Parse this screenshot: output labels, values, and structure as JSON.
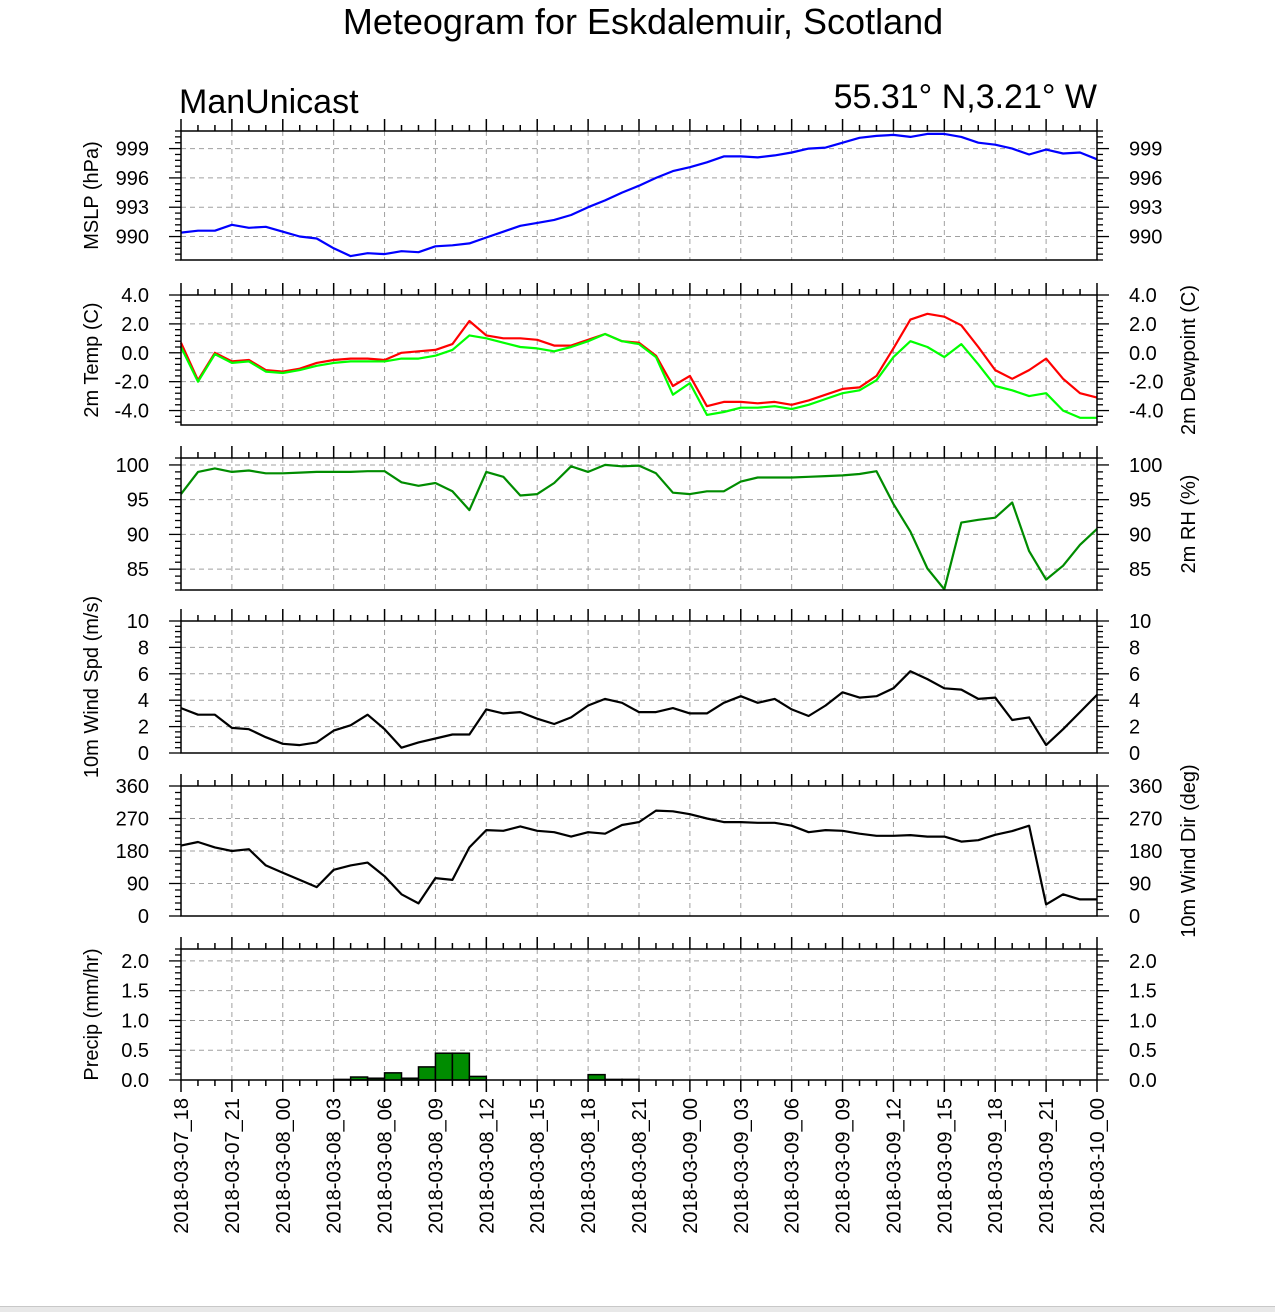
{
  "title": "Meteogram for Eskdalemuir, Scotland",
  "model": "ManUnicast",
  "location": "55.31° N,3.21° W",
  "colors": {
    "mslp": "#0000ff",
    "temp": "#ff0000",
    "dewpoint": "#00ff00",
    "rh": "#008c00",
    "wind": "#000000",
    "precip": "#008c00",
    "grid": "#a0a0a0"
  },
  "chart_data": {
    "type": "line",
    "x_labels": [
      "2018-03-07_18",
      "2018-03-07_21",
      "2018-03-08_00",
      "2018-03-08_03",
      "2018-03-08_06",
      "2018-03-08_09",
      "2018-03-08_12",
      "2018-03-08_15",
      "2018-03-08_18",
      "2018-03-08_21",
      "2018-03-09_00",
      "2018-03-09_03",
      "2018-03-09_06",
      "2018-03-09_09",
      "2018-03-09_12",
      "2018-03-09_15",
      "2018-03-09_18",
      "2018-03-09_21",
      "2018-03-10_00"
    ],
    "x_hours": [
      0,
      1,
      2,
      3,
      4,
      5,
      6,
      7,
      8,
      9,
      10,
      11,
      12,
      13,
      14,
      15,
      16,
      17,
      18,
      19,
      20,
      21,
      22,
      23,
      24,
      25,
      26,
      27,
      28,
      29,
      30,
      31,
      32,
      33,
      34,
      35,
      36,
      37,
      38,
      39,
      40,
      41,
      42,
      43,
      44,
      45,
      46,
      47,
      48,
      49,
      50,
      51,
      52,
      53,
      54
    ],
    "panels": [
      {
        "ylabel": "MSLP (hPa)",
        "ylabel_right": "",
        "ylim": [
          987.6,
          1000.8
        ],
        "ticks": [
          990,
          993,
          996,
          999
        ],
        "tick_labels": [
          "990",
          "993",
          "996",
          "999"
        ],
        "series": [
          {
            "color_key": "mslp",
            "values": [
              990.4,
              990.6,
              990.6,
              991.2,
              990.9,
              991.0,
              990.5,
              990.0,
              989.8,
              988.8,
              988.0,
              988.3,
              988.2,
              988.5,
              988.4,
              989.0,
              989.1,
              989.3,
              989.9,
              990.5,
              991.1,
              991.4,
              991.7,
              992.2,
              993.0,
              993.7,
              994.5,
              995.2,
              996.0,
              996.7,
              997.1,
              997.6,
              998.2,
              998.2,
              998.1,
              998.3,
              998.6,
              999.0,
              999.1,
              999.6,
              1000.1,
              1000.3,
              1000.4,
              1000.2,
              1000.5,
              1000.5,
              1000.2,
              999.6,
              999.4,
              999.0,
              998.4,
              998.9,
              998.5,
              998.6,
              997.9
            ]
          }
        ]
      },
      {
        "ylabel": "2m Temp (C)",
        "ylabel_right": "2m Dewpoint (C)",
        "ylim": [
          -5.0,
          4.0
        ],
        "ticks": [
          -4,
          -2,
          0,
          2,
          4
        ],
        "tick_labels": [
          "-4.0",
          "-2.0",
          "0.0",
          "2.0",
          "4.0"
        ],
        "series": [
          {
            "color_key": "temp",
            "values": [
              0.7,
              -1.9,
              0.0,
              -0.6,
              -0.5,
              -1.2,
              -1.3,
              -1.1,
              -0.7,
              -0.5,
              -0.4,
              -0.4,
              -0.5,
              0.0,
              0.1,
              0.2,
              0.6,
              2.2,
              1.2,
              1.0,
              1.0,
              0.9,
              0.5,
              0.5,
              0.9,
              1.3,
              0.8,
              0.7,
              -0.2,
              -2.3,
              -1.6,
              -3.7,
              -3.4,
              -3.4,
              -3.5,
              -3.4,
              -3.6,
              -3.3,
              -2.9,
              -2.5,
              -2.4,
              -1.6,
              0.3,
              2.3,
              2.7,
              2.5,
              1.9,
              0.4,
              -1.2,
              -1.8,
              -1.2,
              -0.4,
              -1.8,
              -2.8,
              -3.1
            ]
          },
          {
            "color_key": "dewpoint",
            "values": [
              0.4,
              -2.0,
              -0.1,
              -0.7,
              -0.6,
              -1.3,
              -1.4,
              -1.2,
              -0.9,
              -0.7,
              -0.6,
              -0.6,
              -0.6,
              -0.4,
              -0.4,
              -0.2,
              0.2,
              1.2,
              1.0,
              0.7,
              0.4,
              0.3,
              0.1,
              0.4,
              0.8,
              1.3,
              0.8,
              0.6,
              -0.3,
              -2.9,
              -2.1,
              -4.3,
              -4.1,
              -3.8,
              -3.8,
              -3.7,
              -3.9,
              -3.6,
              -3.2,
              -2.8,
              -2.6,
              -1.9,
              -0.3,
              0.8,
              0.4,
              -0.3,
              0.6,
              -0.8,
              -2.3,
              -2.6,
              -3.0,
              -2.8,
              -4.0,
              -4.5,
              -4.5
            ]
          }
        ]
      },
      {
        "ylabel": "",
        "ylabel_right": "2m RH (%)",
        "ylim": [
          82,
          101
        ],
        "ticks": [
          85,
          90,
          95,
          100
        ],
        "tick_labels": [
          "85",
          "90",
          "95",
          "100"
        ],
        "series": [
          {
            "color_key": "rh",
            "values": [
              95.8,
              99.0,
              99.5,
              99.0,
              99.2,
              98.8,
              98.8,
              98.9,
              99.0,
              99.0,
              99.0,
              99.1,
              99.1,
              97.5,
              97.0,
              97.4,
              96.2,
              93.5,
              99.0,
              98.3,
              95.6,
              95.8,
              97.4,
              99.8,
              99.0,
              100.0,
              99.8,
              99.9,
              98.8,
              96.0,
              95.8,
              96.2,
              96.2,
              97.6,
              98.2,
              98.2,
              98.2,
              98.3,
              98.4,
              98.5,
              98.7,
              99.1,
              94.4,
              90.4,
              85.1,
              82.1,
              91.7,
              92.1,
              92.4,
              94.6,
              87.6,
              83.5,
              85.5,
              88.5,
              90.8
            ]
          }
        ]
      },
      {
        "ylabel": "10m Wind Spd (m/s)",
        "ylabel_right": "",
        "ylim": [
          0,
          10
        ],
        "ticks": [
          0,
          2,
          4,
          6,
          8,
          10
        ],
        "tick_labels": [
          "0",
          "2",
          "4",
          "6",
          "8",
          "10"
        ],
        "series": [
          {
            "color_key": "wind",
            "values": [
              3.4,
              2.9,
              2.9,
              1.9,
              1.8,
              1.2,
              0.7,
              0.6,
              0.8,
              1.7,
              2.1,
              2.9,
              1.8,
              0.4,
              0.8,
              1.1,
              1.4,
              1.4,
              3.3,
              3.0,
              3.1,
              2.6,
              2.2,
              2.7,
              3.6,
              4.1,
              3.8,
              3.1,
              3.1,
              3.4,
              3.0,
              3.0,
              3.8,
              4.3,
              3.8,
              4.1,
              3.3,
              2.8,
              3.6,
              4.6,
              4.2,
              4.3,
              4.9,
              6.2,
              5.6,
              4.9,
              4.8,
              4.1,
              4.2,
              2.5,
              2.7,
              0.6,
              1.8,
              3.1,
              4.4
            ]
          }
        ]
      },
      {
        "ylabel": "",
        "ylabel_right": "10m Wind Dir (deg)",
        "ylim": [
          0,
          360
        ],
        "ticks": [
          0,
          90,
          180,
          270,
          360
        ],
        "tick_labels": [
          "0",
          "90",
          "180",
          "270",
          "360"
        ],
        "series": [
          {
            "color_key": "wind",
            "values": [
              195,
              205,
              190,
              180,
              185,
              140,
              120,
              100,
              80,
              128,
              140,
              148,
              110,
              60,
              35,
              105,
              100,
              190,
              238,
              236,
              248,
              236,
              232,
              220,
              232,
              228,
              252,
              260,
              292,
              290,
              282,
              270,
              260,
              260,
              258,
              258,
              250,
              232,
              238,
              236,
              228,
              222,
              222,
              224,
              220,
              220,
              206,
              210,
              225,
              235,
              250,
              32,
              60,
              46,
              46
            ]
          }
        ]
      },
      {
        "ylabel": "Precip (mm/hr)",
        "ylabel_right": "",
        "ylim": [
          0,
          2.2
        ],
        "ticks": [
          0,
          0.5,
          1.0,
          1.5,
          2.0
        ],
        "tick_labels": [
          "0.0",
          "0.5",
          "1.0",
          "1.5",
          "2.0"
        ],
        "bars": {
          "color_key": "precip",
          "values": [
            0,
            0,
            0,
            0,
            0,
            0,
            0,
            0,
            0,
            0.01,
            0.05,
            0.03,
            0.12,
            0.03,
            0.22,
            0.45,
            0.45,
            0.06,
            0,
            0,
            0,
            0,
            0,
            0,
            0.09,
            0.01,
            0.01,
            0,
            0,
            0,
            0,
            0,
            0,
            0,
            0,
            0,
            0,
            0,
            0,
            0,
            0,
            0,
            0,
            0,
            0,
            0,
            0,
            0,
            0,
            0,
            0,
            0,
            0,
            0
          ]
        }
      }
    ]
  }
}
